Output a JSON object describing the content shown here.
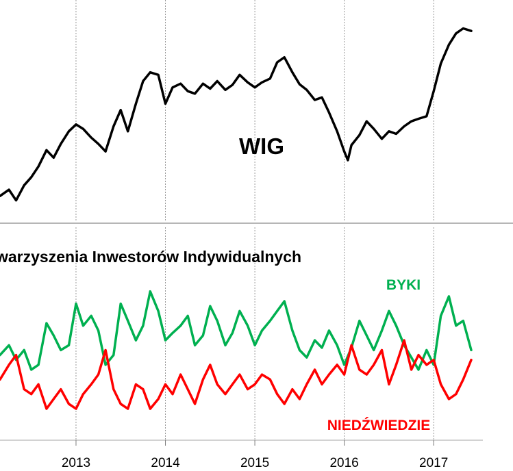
{
  "chart_data": [
    {
      "type": "line",
      "title": "",
      "series": [
        {
          "name": "WIG",
          "color": "#000000",
          "x": [
            2012.15,
            2012.25,
            2012.33,
            2012.42,
            2012.5,
            2012.58,
            2012.67,
            2012.75,
            2012.83,
            2012.92,
            2013.0,
            2013.08,
            2013.17,
            2013.25,
            2013.33,
            2013.42,
            2013.5,
            2013.58,
            2013.67,
            2013.75,
            2013.83,
            2013.92,
            2014.0,
            2014.08,
            2014.17,
            2014.25,
            2014.33,
            2014.42,
            2014.5,
            2014.58,
            2014.67,
            2014.75,
            2014.83,
            2014.92,
            2015.0,
            2015.08,
            2015.17,
            2015.25,
            2015.33,
            2015.42,
            2015.5,
            2015.58,
            2015.67,
            2015.75,
            2015.83,
            2015.92,
            2016.0,
            2016.04,
            2016.08,
            2016.17,
            2016.25,
            2016.33,
            2016.42,
            2016.5,
            2016.58,
            2016.67,
            2016.75,
            2016.83,
            2016.92,
            2017.0,
            2017.08,
            2017.17,
            2017.25,
            2017.33,
            2017.42
          ],
          "y": [
            41500,
            42500,
            40800,
            43200,
            44500,
            46200,
            48800,
            47600,
            49800,
            51800,
            52900,
            52200,
            50800,
            49800,
            48600,
            52600,
            55200,
            51800,
            56200,
            59800,
            61200,
            60800,
            56200,
            58800,
            59400,
            58200,
            57800,
            59400,
            58600,
            59800,
            58400,
            59200,
            60800,
            59600,
            58800,
            59600,
            60200,
            62800,
            63600,
            61200,
            59300,
            58400,
            56800,
            57200,
            54800,
            51800,
            48600,
            47200,
            49600,
            51200,
            53400,
            52200,
            50600,
            51800,
            51400,
            52600,
            53400,
            53800,
            54200,
            58200,
            62600,
            65600,
            67400,
            68200,
            67800
          ],
          "markers": []
        }
      ],
      "xlim": [
        2012.15,
        2017.55
      ],
      "ylim": [
        40000,
        70000
      ],
      "grid": "vertical-dashed",
      "annotations": [
        {
          "text": "WIG"
        }
      ]
    },
    {
      "type": "line",
      "title": "warzyszenia Inwestorów Indywidualnych",
      "x_ticks": [
        "2013",
        "2014",
        "2015",
        "2016",
        "2017"
      ],
      "xlim": [
        2012.15,
        2017.55
      ],
      "ylim": [
        0,
        70
      ],
      "grid": "vertical-dashed",
      "series": [
        {
          "name": "BYKI",
          "color": "#00b050",
          "x": [
            2012.15,
            2012.25,
            2012.33,
            2012.42,
            2012.5,
            2012.58,
            2012.67,
            2012.75,
            2012.83,
            2012.92,
            2013.0,
            2013.08,
            2013.17,
            2013.25,
            2013.33,
            2013.42,
            2013.5,
            2013.58,
            2013.67,
            2013.75,
            2013.83,
            2013.92,
            2014.0,
            2014.08,
            2014.17,
            2014.25,
            2014.33,
            2014.42,
            2014.5,
            2014.58,
            2014.67,
            2014.75,
            2014.83,
            2014.92,
            2015.0,
            2015.08,
            2015.17,
            2015.25,
            2015.33,
            2015.42,
            2015.5,
            2015.58,
            2015.67,
            2015.75,
            2015.83,
            2015.92,
            2016.0,
            2016.08,
            2016.17,
            2016.25,
            2016.33,
            2016.42,
            2016.5,
            2016.58,
            2016.67,
            2016.75,
            2016.83,
            2016.92,
            2017.0,
            2017.08,
            2017.17,
            2017.25,
            2017.33,
            2017.42
          ],
          "y": [
            34,
            38,
            32,
            36,
            28,
            30,
            47,
            42,
            36,
            38,
            55,
            46,
            50,
            44,
            30,
            34,
            55,
            48,
            40,
            46,
            60,
            52,
            40,
            43,
            46,
            50,
            38,
            42,
            54,
            48,
            38,
            43,
            52,
            46,
            38,
            44,
            48,
            52,
            56,
            44,
            36,
            33,
            40,
            37,
            44,
            38,
            30,
            37,
            48,
            42,
            36,
            44,
            52,
            46,
            38,
            33,
            28,
            36,
            30,
            50,
            58,
            46,
            48,
            36
          ],
          "markers": []
        },
        {
          "name": "NIEDŹWIEDZIE",
          "color": "#ff0000",
          "x": [
            2012.15,
            2012.25,
            2012.33,
            2012.42,
            2012.5,
            2012.58,
            2012.67,
            2012.75,
            2012.83,
            2012.92,
            2013.0,
            2013.08,
            2013.17,
            2013.25,
            2013.33,
            2013.42,
            2013.5,
            2013.58,
            2013.67,
            2013.75,
            2013.83,
            2013.92,
            2014.0,
            2014.08,
            2014.17,
            2014.25,
            2014.33,
            2014.42,
            2014.5,
            2014.58,
            2014.67,
            2014.75,
            2014.83,
            2014.92,
            2015.0,
            2015.08,
            2015.17,
            2015.25,
            2015.33,
            2015.42,
            2015.5,
            2015.58,
            2015.67,
            2015.75,
            2015.83,
            2015.92,
            2016.0,
            2016.08,
            2016.17,
            2016.25,
            2016.33,
            2016.42,
            2016.5,
            2016.58,
            2016.67,
            2016.75,
            2016.83,
            2016.92,
            2017.0,
            2017.08,
            2017.17,
            2017.25,
            2017.33,
            2017.42
          ],
          "y": [
            24,
            30,
            34,
            20,
            18,
            22,
            12,
            16,
            20,
            14,
            12,
            18,
            22,
            26,
            36,
            20,
            14,
            12,
            22,
            20,
            12,
            16,
            22,
            18,
            26,
            20,
            14,
            24,
            30,
            22,
            18,
            22,
            26,
            20,
            22,
            26,
            24,
            18,
            14,
            20,
            16,
            22,
            28,
            22,
            26,
            30,
            26,
            38,
            28,
            26,
            30,
            36,
            22,
            30,
            40,
            28,
            34,
            30,
            32,
            22,
            16,
            18,
            24,
            32
          ]
        }
      ],
      "annotations": [
        {
          "text": "BYKI"
        },
        {
          "text": "NIEDŹWIEDZIE"
        }
      ]
    }
  ]
}
